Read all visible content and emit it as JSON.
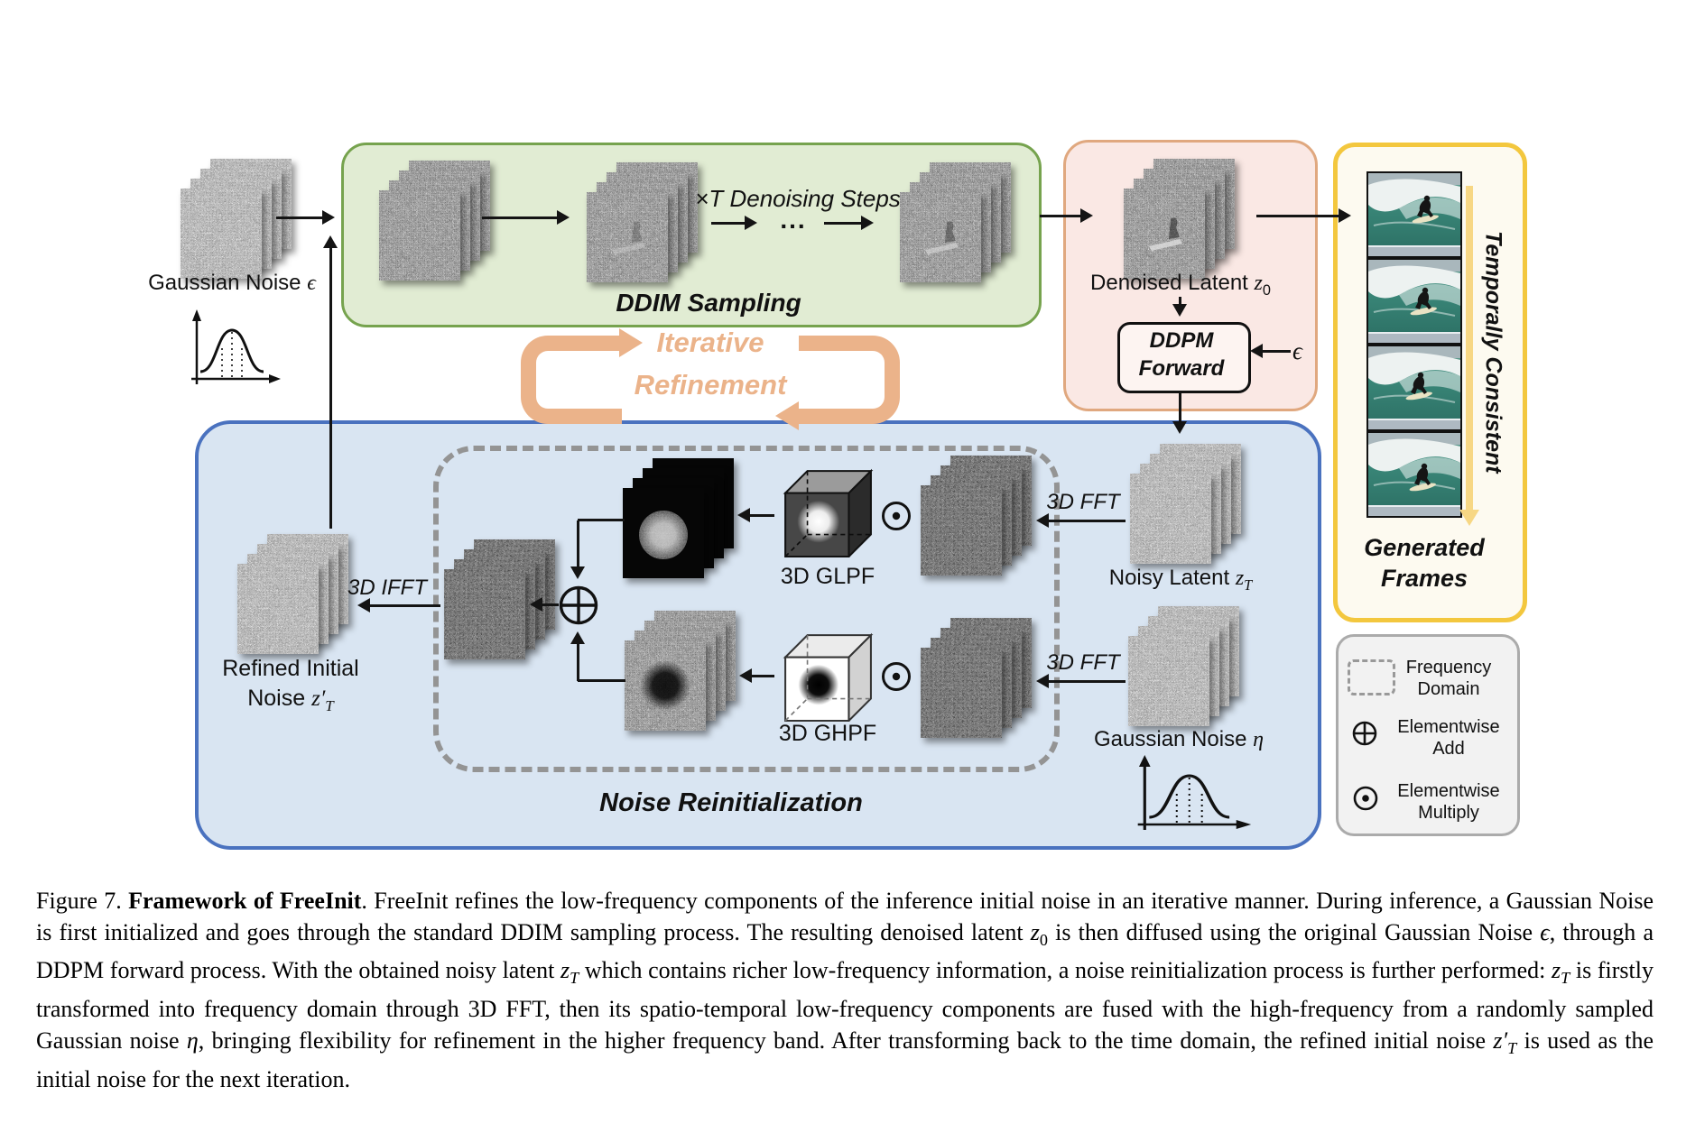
{
  "colors": {
    "green_fill": "#e1ecd3",
    "green_border": "#76a34e",
    "pink_fill": "#fae8e4",
    "pink_border": "#e0a87f",
    "yellow_fill": "#fdfaf0",
    "yellow_border": "#f3c73e",
    "blue_fill": "#d9e5f2",
    "blue_border": "#4a72bf",
    "legend_fill": "#f2f2f2",
    "legend_border": "#ababab",
    "orange": "#ebb38a",
    "dashed": "#949494",
    "arrow_black": "#141414",
    "yellow_arrow": "#f7d784",
    "ddpm_fill": "#fdf4f1"
  },
  "gaussian_eps": {
    "pre": "Gaussian Noise ",
    "sym": "ϵ"
  },
  "ddim": {
    "title": "DDIM Sampling",
    "steps": "×T Denoising Steps",
    "dots": "..."
  },
  "denoised": {
    "pre": "Denoised Latent ",
    "sym": "z",
    "sub": "0"
  },
  "ddpm": {
    "line1": "DDPM",
    "line2": "Forward",
    "eps": "ϵ"
  },
  "cycle": {
    "line1": "Iterative",
    "line2": "Refinement"
  },
  "generated": {
    "line1": "Generated",
    "line2": "Frames",
    "side": "Temporally Consistent"
  },
  "blue": {
    "title": "Noise Reinitialization",
    "ifft": "3D IFFT",
    "fft_top": "3D FFT",
    "fft_bottom": "3D FFT",
    "glpf": "3D GLPF",
    "ghpf": "3D GHPF"
  },
  "refined": {
    "line1": "Refined Initial",
    "line2_pre": "Noise ",
    "sym": "z′",
    "sub": "T"
  },
  "noisy_latent": {
    "pre": "Noisy Latent ",
    "sym": "z",
    "sub": "T"
  },
  "gaussian_eta": {
    "pre": "Gaussian Noise ",
    "sym": "η"
  },
  "legend": {
    "freq1": "Frequency",
    "freq2": "Domain",
    "add1": "Elementwise",
    "add2": "Add",
    "mul1": "Elementwise",
    "mul2": "Multiply"
  },
  "caption": {
    "runs": [
      {
        "t": "Figure 7.  "
      },
      {
        "t": "Framework of FreeInit",
        "b": true
      },
      {
        "t": ". FreeInit refines the low-frequency components of the inference initial noise in an iterative manner. During inference, a Gaussian Noise is first initialized and goes through the standard DDIM sampling process. The resulting denoised latent "
      },
      {
        "t": "z",
        "i": true
      },
      {
        "t": "0",
        "sub": true
      },
      {
        "t": " is then diffused using the original Gaussian Noise "
      },
      {
        "t": "ϵ",
        "i": true
      },
      {
        "t": ", through a DDPM forward process. With the obtained noisy latent "
      },
      {
        "t": "z",
        "i": true
      },
      {
        "t": "T",
        "sub": true,
        "i": true
      },
      {
        "t": " which contains richer low-frequency information, a noise reinitialization process is further performed: "
      },
      {
        "t": "z",
        "i": true
      },
      {
        "t": "T",
        "sub": true,
        "i": true
      },
      {
        "t": " is firstly transformed into frequency domain through 3D FFT, then its spatio-temporal low-frequency components are fused with the high-frequency from a randomly sampled Gaussian noise "
      },
      {
        "t": "η",
        "i": true
      },
      {
        "t": ", bringing flexibility for refinement in the higher frequency band. After transforming back to the time domain, the refined initial noise "
      },
      {
        "t": "z′",
        "i": true
      },
      {
        "t": "T",
        "sub": true,
        "i": true
      },
      {
        "t": " is used as the initial noise for the next iteration."
      }
    ]
  }
}
